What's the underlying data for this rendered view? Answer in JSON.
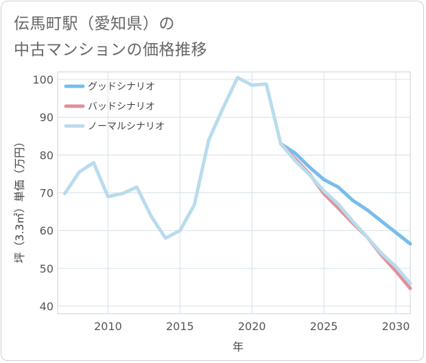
{
  "title": {
    "line1": "伝馬町駅（愛知県）の",
    "line2": "中古マンションの価格推移"
  },
  "chart_data": {
    "type": "line",
    "xlabel": "年",
    "ylabel": "坪（3.3㎡）単価（万円）",
    "xlim": [
      2006.5,
      2031
    ],
    "ylim": [
      38,
      102
    ],
    "xticks": [
      2010,
      2015,
      2020,
      2025,
      2030
    ],
    "yticks": [
      40,
      50,
      60,
      70,
      80,
      90,
      100
    ],
    "grid": true,
    "legend_position": "top-left",
    "series": [
      {
        "name": "グッドシナリオ",
        "color": "#77bdea",
        "x": [
          2022,
          2023,
          2024,
          2025,
          2026,
          2027,
          2028,
          2029,
          2030,
          2031
        ],
        "values": [
          83,
          80.5,
          76.8,
          73.5,
          71.5,
          68,
          65.5,
          62.5,
          59.5,
          56.5
        ]
      },
      {
        "name": "バッドシナリオ",
        "color": "#e0909a",
        "x": [
          2022,
          2023,
          2024,
          2025,
          2026,
          2027,
          2028,
          2029,
          2030,
          2031
        ],
        "values": [
          83,
          79,
          75,
          69.8,
          66,
          62,
          58.3,
          53.5,
          49.3,
          44.7
        ]
      },
      {
        "name": "ノーマルシナリオ",
        "color": "#b9dcec",
        "x": [
          2007,
          2008,
          2009,
          2010,
          2011,
          2012,
          2013,
          2014,
          2015,
          2016,
          2017,
          2018,
          2019,
          2020,
          2021,
          2022,
          2023,
          2024,
          2025,
          2026,
          2027,
          2028,
          2029,
          2030,
          2031
        ],
        "values": [
          69.8,
          75.5,
          78,
          69,
          69.8,
          71.5,
          63.8,
          58,
          60,
          66.8,
          84,
          92.5,
          100.5,
          98.5,
          98.8,
          83,
          78.5,
          74.8,
          70.5,
          67,
          62.5,
          58.3,
          54,
          50.5,
          46
        ]
      }
    ]
  }
}
